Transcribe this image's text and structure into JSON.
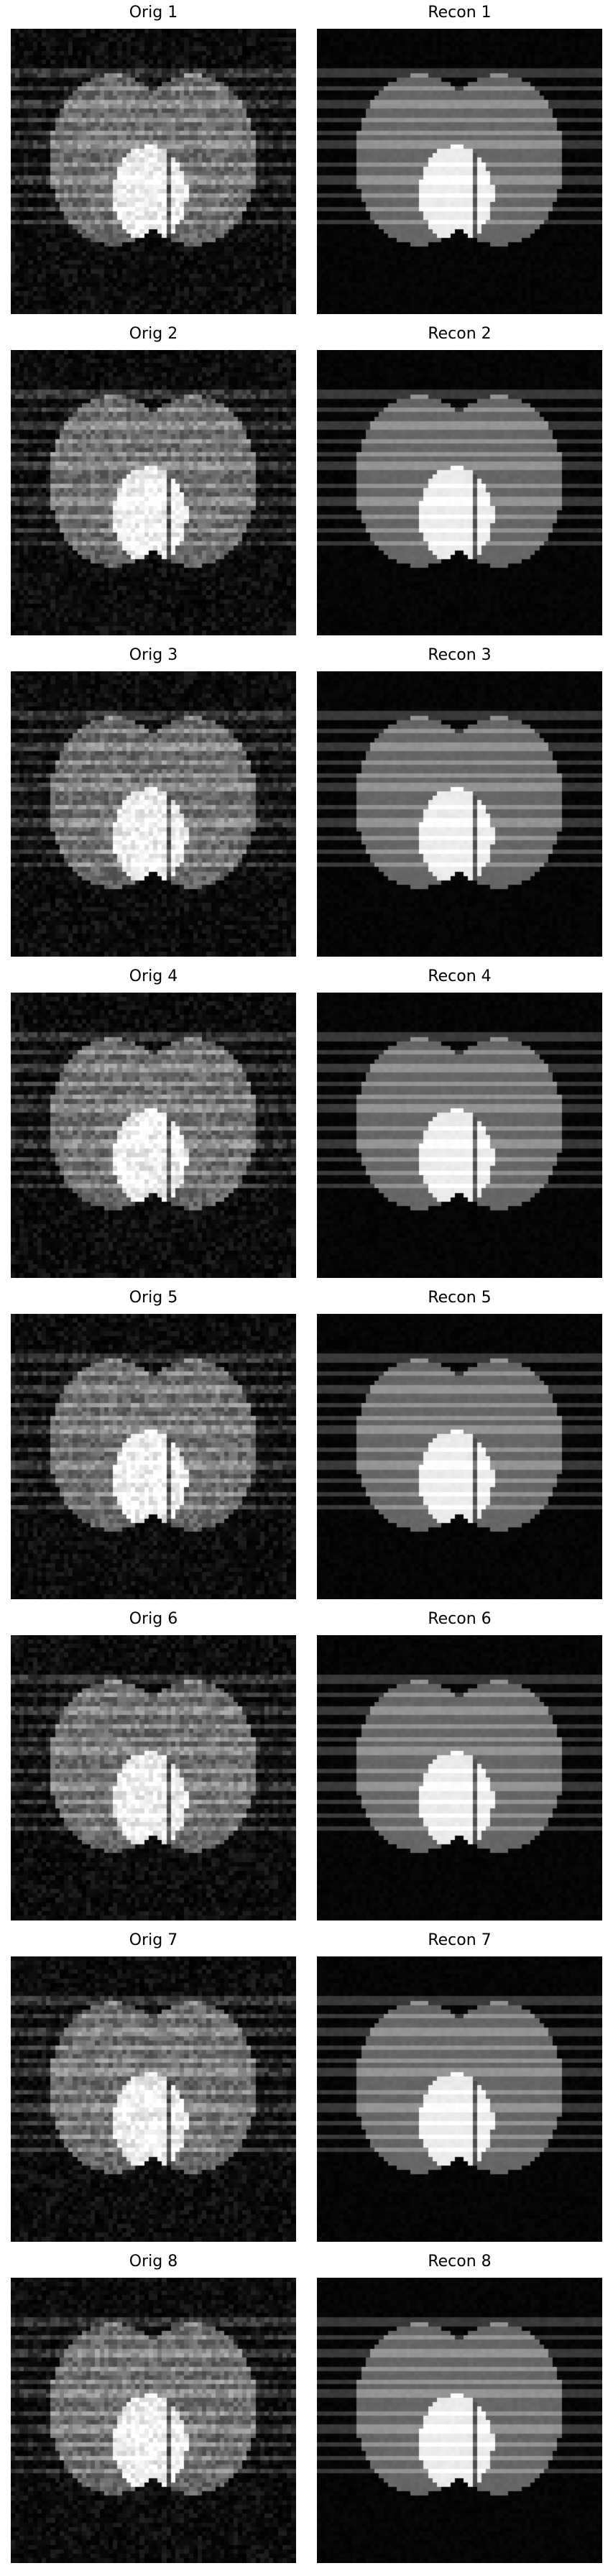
{
  "figure": {
    "panels": [
      {
        "title": "Orig 1",
        "kind": "original"
      },
      {
        "title": "Recon 1",
        "kind": "reconstruction"
      },
      {
        "title": "Orig 2",
        "kind": "original"
      },
      {
        "title": "Recon 2",
        "kind": "reconstruction"
      },
      {
        "title": "Orig 3",
        "kind": "original"
      },
      {
        "title": "Recon 3",
        "kind": "reconstruction"
      },
      {
        "title": "Orig 4",
        "kind": "original"
      },
      {
        "title": "Recon 4",
        "kind": "reconstruction"
      },
      {
        "title": "Orig 5",
        "kind": "original"
      },
      {
        "title": "Recon 5",
        "kind": "reconstruction"
      },
      {
        "title": "Orig 6",
        "kind": "original"
      },
      {
        "title": "Recon 6",
        "kind": "reconstruction"
      },
      {
        "title": "Orig 7",
        "kind": "original"
      },
      {
        "title": "Recon 7",
        "kind": "reconstruction"
      },
      {
        "title": "Orig 8",
        "kind": "original"
      },
      {
        "title": "Recon 8",
        "kind": "reconstruction"
      }
    ],
    "colors": {
      "background_dark": "#050505",
      "lobe_gray": "#6e6e6e",
      "center_bright": "#f2f2f2",
      "stripe_light": "#9a9a9a"
    }
  }
}
